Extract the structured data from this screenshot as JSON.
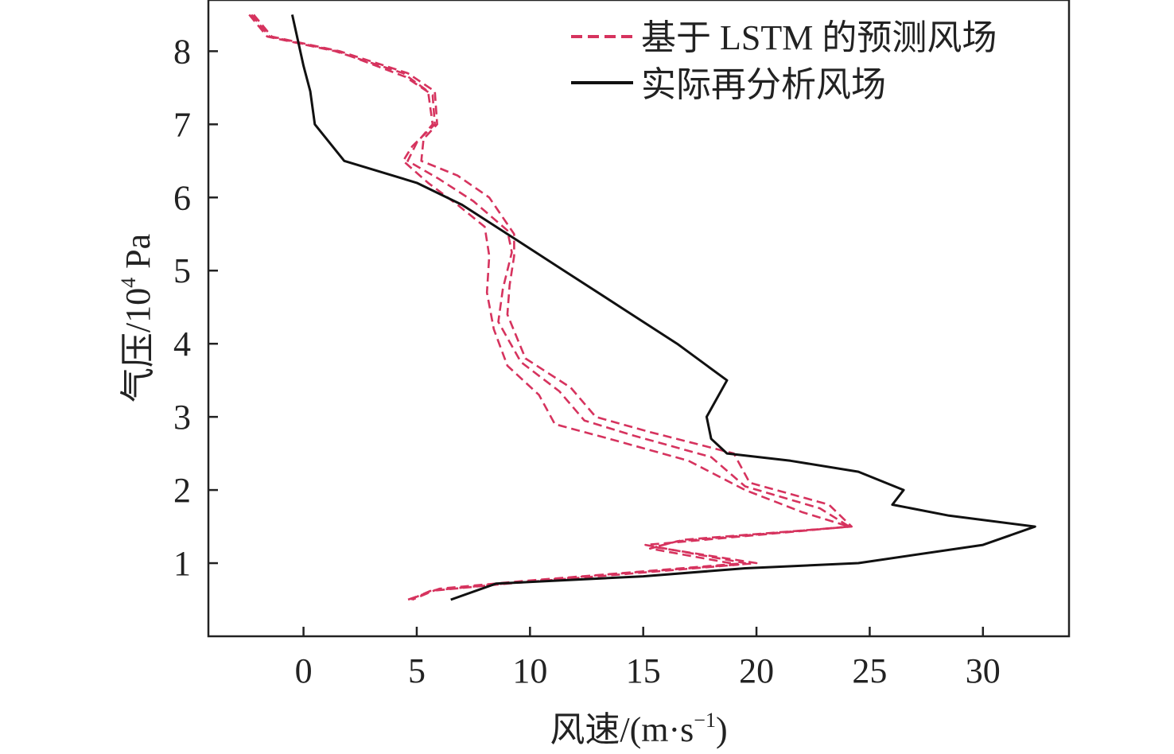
{
  "chart_data": {
    "type": "line",
    "xlabel": "风速/(m·s",
    "xlabel_sup": "−1",
    "xlabel_close": ")",
    "ylabel": "气压/10",
    "ylabel_sup": "4",
    "ylabel_unit": " Pa",
    "xlim": [
      -4.2,
      33.8
    ],
    "ylim": [
      0.0,
      8.7
    ],
    "xticks": [
      0,
      5,
      10,
      15,
      20,
      25,
      30
    ],
    "yticks": [
      1,
      2,
      3,
      4,
      5,
      6,
      7,
      8
    ],
    "grid": false,
    "legend": "top-right",
    "series": [
      {
        "name": "基于 LSTM 的预测风场",
        "style": "dashed",
        "color": "#d6335e",
        "points": [
          [
            -2.3,
            8.5
          ],
          [
            -1.5,
            8.2
          ],
          [
            1.5,
            8.0
          ],
          [
            4.5,
            7.65
          ],
          [
            5.7,
            7.4
          ],
          [
            5.8,
            7.0
          ],
          [
            4.8,
            6.7
          ],
          [
            4.4,
            6.5
          ],
          [
            5.5,
            6.2
          ],
          [
            6.8,
            5.9
          ],
          [
            8.0,
            5.6
          ],
          [
            8.2,
            5.2
          ],
          [
            8.1,
            4.7
          ],
          [
            8.4,
            4.2
          ],
          [
            9.0,
            3.7
          ],
          [
            10.4,
            3.3
          ],
          [
            11.1,
            2.9
          ],
          [
            13.5,
            2.7
          ],
          [
            17.0,
            2.4
          ],
          [
            19.5,
            2.0
          ],
          [
            22.0,
            1.7
          ],
          [
            24.1,
            1.5
          ],
          [
            17.0,
            1.3
          ],
          [
            15.1,
            1.25
          ],
          [
            19.5,
            1.0
          ],
          [
            13.5,
            0.85
          ],
          [
            9.5,
            0.75
          ],
          [
            6.0,
            0.65
          ],
          [
            4.6,
            0.5
          ]
        ]
      },
      {
        "name": "",
        "style": "dashed",
        "color": "#d6335e",
        "points": [
          [
            -2.4,
            8.5
          ],
          [
            -1.6,
            8.2
          ],
          [
            1.4,
            8.0
          ],
          [
            4.4,
            7.7
          ],
          [
            5.5,
            7.45
          ],
          [
            5.7,
            7.0
          ],
          [
            5.0,
            6.75
          ],
          [
            4.6,
            6.5
          ],
          [
            6.0,
            6.25
          ],
          [
            7.5,
            5.95
          ],
          [
            9.0,
            5.55
          ],
          [
            9.2,
            5.25
          ],
          [
            8.8,
            4.75
          ],
          [
            8.6,
            4.3
          ],
          [
            9.6,
            3.75
          ],
          [
            11.3,
            3.35
          ],
          [
            12.4,
            2.95
          ],
          [
            14.5,
            2.75
          ],
          [
            18.0,
            2.45
          ],
          [
            19.5,
            2.05
          ],
          [
            22.8,
            1.75
          ],
          [
            24.1,
            1.5
          ],
          [
            16.5,
            1.3
          ],
          [
            15.3,
            1.2
          ],
          [
            19.2,
            0.98
          ],
          [
            13.0,
            0.82
          ],
          [
            9.0,
            0.72
          ],
          [
            5.6,
            0.62
          ],
          [
            4.7,
            0.5
          ]
        ]
      },
      {
        "name": "",
        "style": "dashed",
        "color": "#d6335e",
        "points": [
          [
            -2.2,
            8.5
          ],
          [
            -1.4,
            8.2
          ],
          [
            1.6,
            8.0
          ],
          [
            4.6,
            7.7
          ],
          [
            5.8,
            7.45
          ],
          [
            5.9,
            7.0
          ],
          [
            5.3,
            6.8
          ],
          [
            5.2,
            6.5
          ],
          [
            6.8,
            6.3
          ],
          [
            8.2,
            6.0
          ],
          [
            9.3,
            5.5
          ],
          [
            9.3,
            5.2
          ],
          [
            9.1,
            4.8
          ],
          [
            9.0,
            4.4
          ],
          [
            9.8,
            3.8
          ],
          [
            11.8,
            3.4
          ],
          [
            12.9,
            3.0
          ],
          [
            15.2,
            2.8
          ],
          [
            19.0,
            2.5
          ],
          [
            19.7,
            2.1
          ],
          [
            23.2,
            1.8
          ],
          [
            24.2,
            1.5
          ],
          [
            16.8,
            1.32
          ],
          [
            15.5,
            1.22
          ],
          [
            20.0,
            1.0
          ],
          [
            13.2,
            0.84
          ],
          [
            9.2,
            0.73
          ],
          [
            5.8,
            0.63
          ],
          [
            4.8,
            0.5
          ]
        ]
      },
      {
        "name": "实际再分析风场",
        "style": "solid",
        "color": "#111111",
        "points": [
          [
            -0.5,
            8.5
          ],
          [
            0.0,
            7.8
          ],
          [
            0.3,
            7.45
          ],
          [
            0.5,
            7.0
          ],
          [
            1.8,
            6.5
          ],
          [
            5.0,
            6.2
          ],
          [
            7.0,
            5.9
          ],
          [
            9.5,
            5.4
          ],
          [
            11.5,
            5.0
          ],
          [
            14.0,
            4.5
          ],
          [
            16.5,
            4.0
          ],
          [
            18.7,
            3.5
          ],
          [
            17.8,
            3.0
          ],
          [
            18.0,
            2.7
          ],
          [
            18.7,
            2.5
          ],
          [
            21.5,
            2.4
          ],
          [
            24.5,
            2.25
          ],
          [
            26.5,
            2.0
          ],
          [
            26.0,
            1.8
          ],
          [
            28.5,
            1.65
          ],
          [
            32.3,
            1.5
          ],
          [
            30.0,
            1.25
          ],
          [
            24.5,
            1.0
          ],
          [
            19.5,
            0.93
          ],
          [
            15.0,
            0.82
          ],
          [
            8.5,
            0.72
          ],
          [
            6.5,
            0.5
          ]
        ]
      }
    ]
  }
}
